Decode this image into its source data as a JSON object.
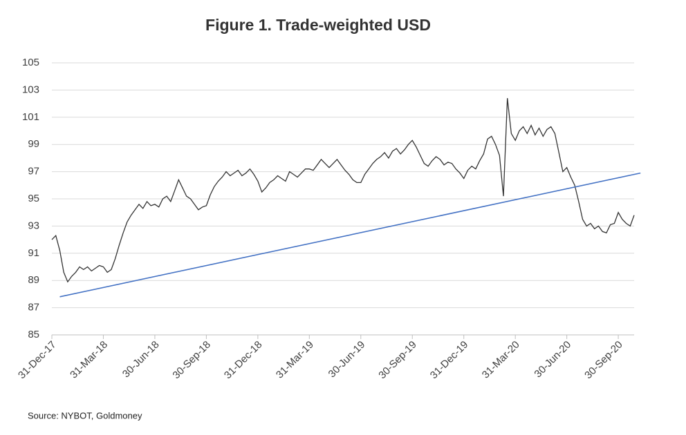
{
  "chart_data": {
    "type": "line",
    "title": "Figure 1. Trade-weighted USD",
    "source": "Source: NYBOT, Goldmoney",
    "categories": [
      "31-Dec-17",
      null,
      null,
      null,
      null,
      null,
      null,
      null,
      null,
      null,
      null,
      null,
      null,
      "31-Mar-18",
      null,
      null,
      null,
      null,
      null,
      null,
      null,
      null,
      null,
      null,
      null,
      null,
      "30-Jun-18",
      null,
      null,
      null,
      null,
      null,
      null,
      null,
      null,
      null,
      null,
      null,
      null,
      "30-Sep-18",
      null,
      null,
      null,
      null,
      null,
      null,
      null,
      null,
      null,
      null,
      null,
      null,
      "31-Dec-18",
      null,
      null,
      null,
      null,
      null,
      null,
      null,
      null,
      null,
      null,
      null,
      null,
      "31-Mar-19",
      null,
      null,
      null,
      null,
      null,
      null,
      null,
      null,
      null,
      null,
      null,
      null,
      "30-Jun-19",
      null,
      null,
      null,
      null,
      null,
      null,
      null,
      null,
      null,
      null,
      null,
      null,
      "30-Sep-19",
      null,
      null,
      null,
      null,
      null,
      null,
      null,
      null,
      null,
      null,
      null,
      null,
      "31-Dec-19",
      null,
      null,
      null,
      null,
      null,
      null,
      null,
      null,
      null,
      null,
      null,
      null,
      "31-Mar-20",
      null,
      null,
      null,
      null,
      null,
      null,
      null,
      null,
      null,
      null,
      null,
      null,
      "30-Jun-20",
      null,
      null,
      null,
      null,
      null,
      null,
      null,
      null,
      null,
      null,
      null,
      null,
      "30-Sep-20",
      null,
      null,
      null,
      null
    ],
    "series": [
      {
        "color": "#333333",
        "values": [
          92.0,
          92.3,
          91.2,
          89.6,
          88.9,
          89.3,
          89.6,
          90.0,
          89.8,
          90.0,
          89.7,
          89.9,
          90.1,
          90.0,
          89.6,
          89.8,
          90.6,
          91.6,
          92.5,
          93.3,
          93.8,
          94.2,
          94.6,
          94.3,
          94.8,
          94.5,
          94.6,
          94.4,
          95.0,
          95.2,
          94.8,
          95.6,
          96.4,
          95.8,
          95.2,
          95.0,
          94.6,
          94.2,
          94.4,
          94.5,
          95.3,
          95.9,
          96.3,
          96.6,
          97.0,
          96.7,
          96.9,
          97.1,
          96.7,
          96.9,
          97.2,
          96.8,
          96.3,
          95.5,
          95.8,
          96.2,
          96.4,
          96.7,
          96.5,
          96.3,
          97.0,
          96.8,
          96.6,
          96.9,
          97.2,
          97.2,
          97.1,
          97.5,
          97.9,
          97.6,
          97.3,
          97.6,
          97.9,
          97.5,
          97.1,
          96.8,
          96.4,
          96.2,
          96.2,
          96.8,
          97.2,
          97.6,
          97.9,
          98.1,
          98.4,
          98.0,
          98.5,
          98.7,
          98.3,
          98.6,
          99.0,
          99.3,
          98.8,
          98.2,
          97.6,
          97.4,
          97.8,
          98.1,
          97.9,
          97.5,
          97.7,
          97.6,
          97.2,
          96.9,
          96.5,
          97.1,
          97.4,
          97.2,
          97.8,
          98.3,
          99.4,
          99.6,
          99.0,
          98.2,
          95.2,
          102.4,
          99.8,
          99.3,
          100.0,
          100.3,
          99.8,
          100.4,
          99.7,
          100.2,
          99.6,
          100.1,
          100.3,
          99.8,
          98.4,
          97.0,
          97.3,
          96.6,
          96.0,
          94.8,
          93.5,
          93.0,
          93.2,
          92.8,
          93.0,
          92.6,
          92.5,
          93.1,
          93.2,
          94.0,
          93.5,
          93.2,
          93.0,
          93.8
        ]
      }
    ],
    "trend_line": {
      "color": "#4472c4",
      "x": [
        2,
        148.6
      ],
      "values": [
        87.8,
        96.9
      ]
    },
    "ylim": [
      85,
      105
    ],
    "yticks": [
      85,
      87,
      89,
      91,
      93,
      95,
      97,
      99,
      101,
      103,
      105
    ],
    "grid": true
  }
}
